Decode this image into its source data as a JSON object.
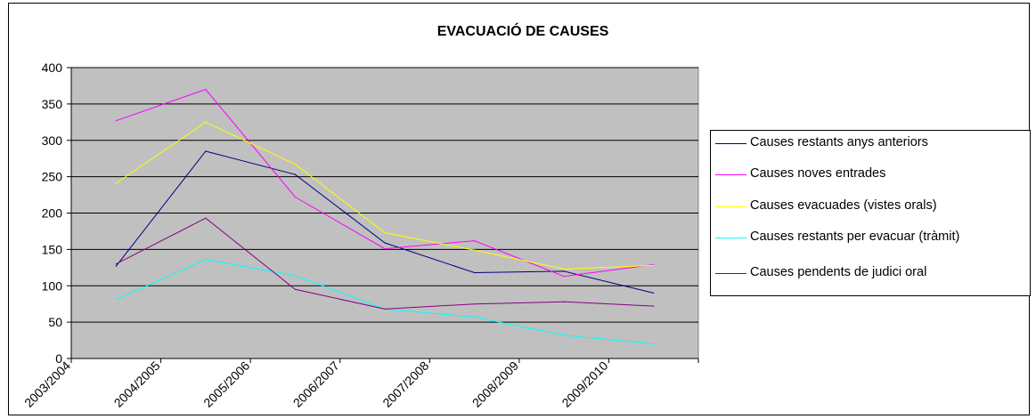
{
  "chart_data": {
    "type": "line",
    "title": "EVACUACIÓ DE CAUSES",
    "categories": [
      "2003/2004",
      "2004/2005",
      "2005/2006",
      "2006/2007",
      "2007/2008",
      "2008/2009",
      "2009/2010"
    ],
    "ylim": [
      0,
      400
    ],
    "yticks": [
      "0",
      "50",
      "100",
      "150",
      "200",
      "250",
      "300",
      "350",
      "400"
    ],
    "grid": true,
    "legend_position": "right",
    "series": [
      {
        "name": "Causes restants anys anteriors",
        "color": "#000080",
        "values": [
          127,
          285,
          253,
          159,
          118,
          120,
          90
        ]
      },
      {
        "name": "Causes noves entrades",
        "color": "#ff00ff",
        "values": [
          327,
          370,
          222,
          151,
          162,
          113,
          129
        ]
      },
      {
        "name": "Causes evacuades (vistes orals)",
        "color": "#ffff00",
        "values": [
          241,
          325,
          267,
          173,
          149,
          123,
          128
        ]
      },
      {
        "name": "Causes restants per evacuar (tràmit)",
        "color": "#00ffff",
        "values": [
          81,
          136,
          114,
          68,
          57,
          32,
          20
        ]
      },
      {
        "name": "Causes pendents de judici oral",
        "color": "#800080",
        "values": [
          130,
          193,
          95,
          68,
          75,
          78,
          72
        ]
      }
    ],
    "plot_background": "#c0c0c0"
  }
}
